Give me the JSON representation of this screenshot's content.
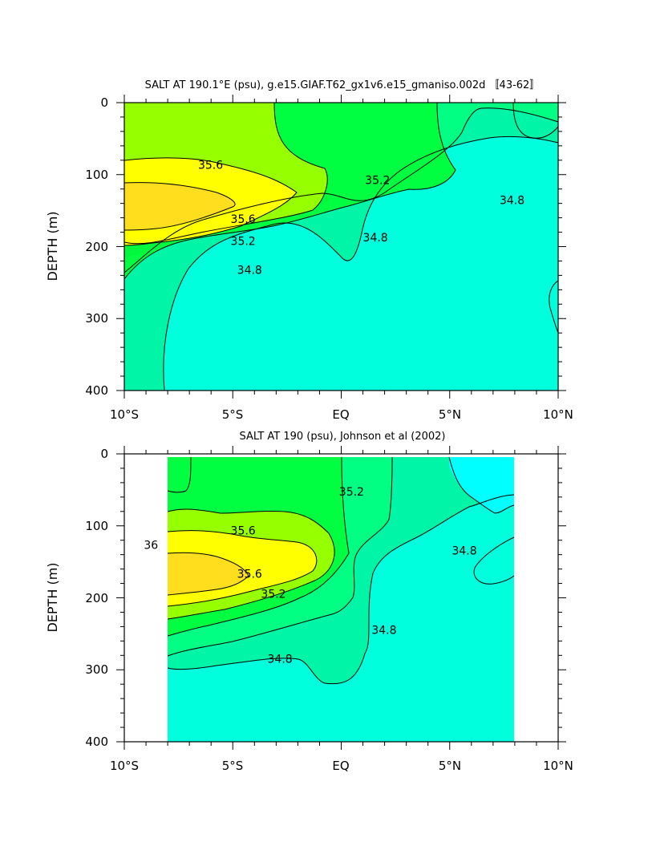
{
  "chart_data": [
    {
      "type": "contour",
      "title": "SALT AT 190.1°E (psu), g.e15.GIAF.T62_gx1v6.e15_gmaniso.002d 〚43-62〛",
      "xlabel": "",
      "ylabel": "DEPTH (m)",
      "x_ticks": [
        "10°S",
        "5°S",
        "EQ",
        "5°N",
        "10°N"
      ],
      "y_ticks": [
        "0",
        "100",
        "200",
        "300",
        "400"
      ],
      "xlim": [
        -10,
        10
      ],
      "ylim": [
        400,
        0
      ],
      "contour_levels": [
        34.6,
        34.8,
        35.0,
        35.2,
        35.4,
        35.6,
        35.8,
        36.0
      ],
      "contour_labels": [
        {
          "text": "35.6",
          "x": -6.6,
          "depth": 92
        },
        {
          "text": "35.6",
          "x": -5.1,
          "depth": 167
        },
        {
          "text": "35.2",
          "x": -5.1,
          "depth": 198
        },
        {
          "text": "34.8",
          "x": -4.8,
          "depth": 238
        },
        {
          "text": "35.2",
          "x": 1.1,
          "depth": 113
        },
        {
          "text": "34.8",
          "x": 1.0,
          "depth": 193
        },
        {
          "text": "34.8",
          "x": 7.3,
          "depth": 141
        }
      ]
    },
    {
      "type": "contour",
      "title": "SALT AT 190 (psu), Johnson et al (2002)",
      "xlabel": "",
      "ylabel": "DEPTH (m)",
      "x_ticks": [
        "10°S",
        "5°S",
        "EQ",
        "5°N",
        "10°N"
      ],
      "y_ticks": [
        "0",
        "100",
        "200",
        "300",
        "400"
      ],
      "xlim": [
        -10,
        10
      ],
      "ylim": [
        400,
        0
      ],
      "data_xrange": [
        -8,
        8
      ],
      "contour_levels": [
        34.6,
        34.8,
        35.0,
        35.2,
        35.4,
        35.6,
        35.8,
        36.0
      ],
      "contour_labels": [
        {
          "text": "36",
          "x": -9.1,
          "depth": 132
        },
        {
          "text": "35.6",
          "x": -5.1,
          "depth": 112
        },
        {
          "text": "35.6",
          "x": -4.8,
          "depth": 172
        },
        {
          "text": "35.2",
          "x": -3.7,
          "depth": 200
        },
        {
          "text": "35.2",
          "x": -0.1,
          "depth": 58
        },
        {
          "text": "34.8",
          "x": 1.4,
          "depth": 250
        },
        {
          "text": "34.8",
          "x": -3.4,
          "depth": 290
        },
        {
          "text": "34.8",
          "x": 5.1,
          "depth": 140
        }
      ]
    }
  ]
}
